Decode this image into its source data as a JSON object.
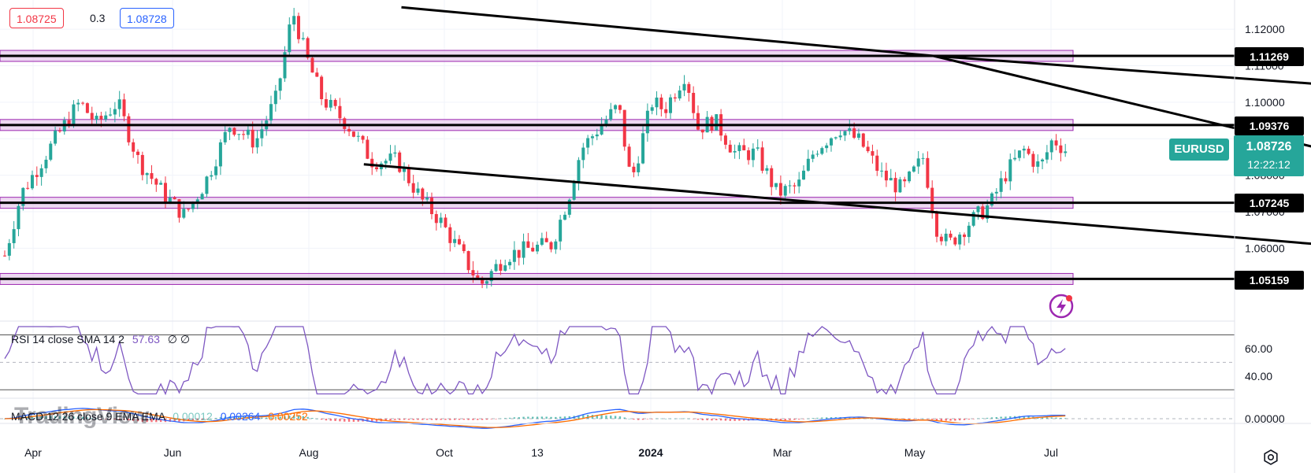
{
  "header": {
    "bid": "1.08725",
    "spread": "0.3",
    "ask": "1.08728"
  },
  "symbol": {
    "name": "EURUSD",
    "last_price": "1.08726",
    "countdown": "12:22:12",
    "up_color": "#26a69a",
    "down_color": "#f23645"
  },
  "level_labels": [
    "1.11269",
    "1.09376",
    "1.07245",
    "1.05159"
  ],
  "rsi": {
    "label": "RSI 14 close SMA 14 2",
    "value": "57.63",
    "extra1": "∅",
    "extra2": "∅",
    "color": "#7e57c2"
  },
  "macd": {
    "label": "MACD 12 26 close 9 EMA EMA",
    "hist": "0.00012",
    "macd": "0.00264",
    "signal": "0.00252",
    "macd_color": "#2962ff",
    "signal_color": "#ff6d00"
  },
  "watermark": "TradingView",
  "chart_data": {
    "type": "candlestick",
    "symbol": "EURUSD",
    "x_ticks": [
      "Apr",
      "Jun",
      "Aug",
      "Oct",
      "13",
      "2024",
      "Mar",
      "May",
      "Jul"
    ],
    "price_axis": {
      "ticks": [
        "1.12000",
        "1.11000",
        "1.10000",
        "1.09000",
        "1.08000",
        "1.07000",
        "1.06000"
      ],
      "ylim": [
        1.045,
        1.128
      ]
    },
    "rsi_axis": {
      "ticks": [
        "60.00",
        "40.00"
      ],
      "ylim": [
        25,
        80
      ]
    },
    "macd_axis": {
      "ticks": [
        "0.00000"
      ],
      "ylim": [
        -0.012,
        0.008
      ]
    },
    "horizontal_levels": [
      1.11269,
      1.09376,
      1.07245,
      1.05159
    ],
    "close_path_points": [
      [
        0,
        1.058
      ],
      [
        0.02,
        1.075
      ],
      [
        0.05,
        1.086
      ],
      [
        0.075,
        1.095
      ],
      [
        0.09,
        1.1
      ],
      [
        0.11,
        1.094
      ],
      [
        0.135,
        1.1
      ],
      [
        0.16,
        1.084
      ],
      [
        0.19,
        1.075
      ],
      [
        0.215,
        1.069
      ],
      [
        0.24,
        1.078
      ],
      [
        0.27,
        1.094
      ],
      [
        0.3,
        1.089
      ],
      [
        0.325,
        1.101
      ],
      [
        0.345,
        1.125
      ],
      [
        0.36,
        1.113
      ],
      [
        0.38,
        1.101
      ],
      [
        0.41,
        1.094
      ],
      [
        0.44,
        1.084
      ],
      [
        0.47,
        1.084
      ],
      [
        0.5,
        1.073
      ],
      [
        0.52,
        1.068
      ],
      [
        0.545,
        1.059
      ],
      [
        0.57,
        1.05
      ],
      [
        0.6,
        1.058
      ],
      [
        0.63,
        1.06
      ],
      [
        0.655,
        1.061
      ],
      [
        0.675,
        1.074
      ],
      [
        0.69,
        1.087
      ],
      [
        0.715,
        1.094
      ],
      [
        0.735,
        1.099
      ],
      [
        0.75,
        1.078
      ],
      [
        0.775,
        1.1
      ],
      [
        0.79,
        1.098
      ],
      [
        0.815,
        1.108
      ],
      [
        0.83,
        1.093
      ],
      [
        0.85,
        1.095
      ],
      [
        0.875,
        1.086
      ],
      [
        0.9,
        1.086
      ],
      [
        0.925,
        1.075
      ],
      [
        0.95,
        1.077
      ],
      [
        0.97,
        1.087
      ],
      [
        1.0,
        1.093
      ],
      [
        1.025,
        1.089
      ],
      [
        1.05,
        1.08
      ],
      [
        1.075,
        1.076
      ],
      [
        1.1,
        1.085
      ],
      [
        1.115,
        1.066
      ],
      [
        1.13,
        1.061
      ],
      [
        1.155,
        1.067
      ],
      [
        1.18,
        1.072
      ],
      [
        1.2,
        1.081
      ],
      [
        1.22,
        1.087
      ],
      [
        1.24,
        1.082
      ],
      [
        1.255,
        1.09
      ],
      [
        1.27,
        1.087
      ]
    ],
    "trendlines": [
      {
        "from": [
          1.112,
          1.11269
        ],
        "to": [
          1.87,
          1.1
        ]
      },
      {
        "from": [
          0.475,
          1.126
        ],
        "to": [
          1.112,
          1.11269
        ]
      },
      {
        "from": [
          1.112,
          1.11269
        ],
        "to": [
          1.745,
          1.078
        ]
      },
      {
        "from": [
          0.43,
          1.083
        ],
        "to": [
          1.785,
          1.057
        ]
      }
    ]
  }
}
